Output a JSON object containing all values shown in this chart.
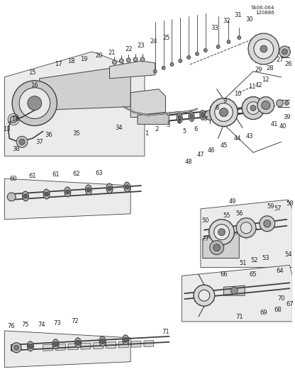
{
  "title_line1": "TA06-064",
  "title_line2": "120886",
  "bg_color": "#ffffff",
  "lc": "#404040",
  "tc": "#222222",
  "fig_width": 4.16,
  "fig_height": 5.28,
  "dpi": 100
}
